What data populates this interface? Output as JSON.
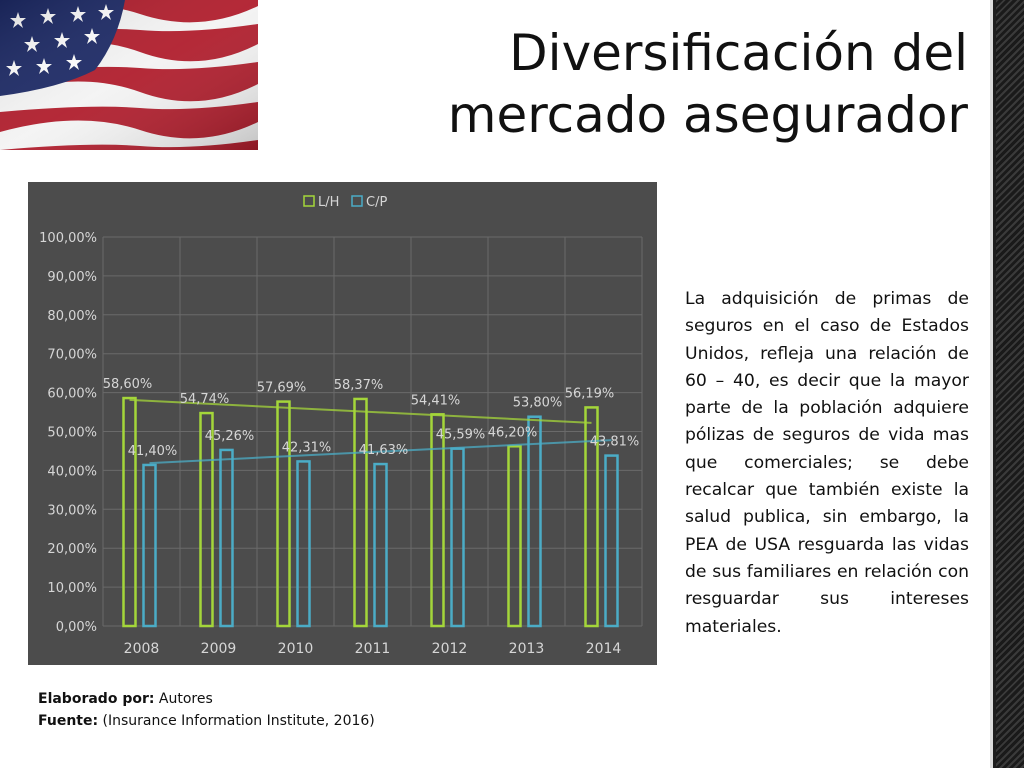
{
  "title": {
    "line1": "Diversificación del",
    "line2": "mercado asegurador"
  },
  "body_text": "La adquisición de primas de seguros en el caso de Estados Unidos, refleja una relación de 60 – 40, es decir que la mayor parte de la población adquiere pólizas de seguros de vida mas que comerciales; se debe recalcar que también existe la salud publica, sin embargo, la PEA de USA resguarda las vidas de sus familiares en relación con resguardar sus intereses materiales.",
  "credits": {
    "elaborado_label": "Elaborado por:",
    "elaborado_value": " Autores",
    "fuente_label": "Fuente:",
    "fuente_value": " (Insurance Information Institute, 2016)"
  },
  "colors": {
    "chart_bg": "#4c4c4c",
    "lh": "#a4d63a",
    "cp": "#4bacc6",
    "grid": "#6a6a6a",
    "label_text": "#d6d6d6"
  },
  "chart_data": {
    "type": "bar",
    "categories": [
      "2008",
      "2009",
      "2010",
      "2011",
      "2012",
      "2013",
      "2014"
    ],
    "series": [
      {
        "name": "L/H",
        "values": [
          58.6,
          54.74,
          57.69,
          58.37,
          54.41,
          46.2,
          56.19
        ],
        "labels": [
          "58,60%",
          "54,74%",
          "57,69%",
          "58,37%",
          "54,41%",
          "46,20%",
          "56,19%"
        ]
      },
      {
        "name": "C/P",
        "values": [
          41.4,
          45.26,
          42.31,
          41.63,
          45.59,
          53.8,
          43.81
        ],
        "labels": [
          "41,40%",
          "45,26%",
          "42,31%",
          "41,63%",
          "45,59%",
          "53,80%",
          "43,81%"
        ]
      }
    ],
    "trendlines": true,
    "ylim": [
      0,
      100
    ],
    "yticks": [
      "0,00%",
      "10,00%",
      "20,00%",
      "30,00%",
      "40,00%",
      "50,00%",
      "60,00%",
      "70,00%",
      "80,00%",
      "90,00%",
      "100,00%"
    ],
    "legend": "top",
    "grid": true
  }
}
